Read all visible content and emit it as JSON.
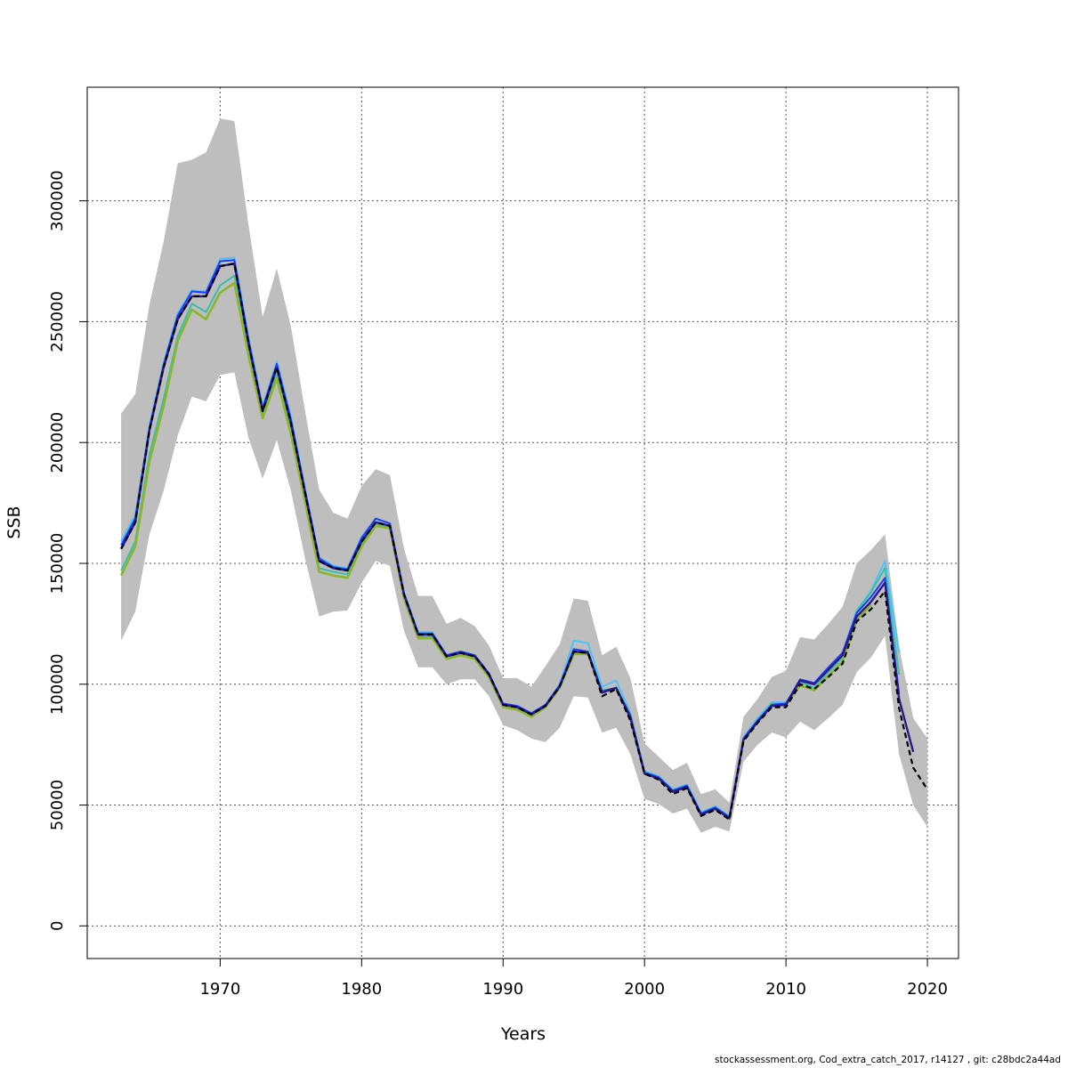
{
  "chart_data": {
    "type": "line",
    "title": "",
    "xlabel": "Years",
    "ylabel": "SSB",
    "xlim": [
      1960.6,
      2022.2
    ],
    "ylim": [
      -13500,
      347000
    ],
    "grid": true,
    "x_ticks": [
      1970,
      1980,
      1990,
      2000,
      2010,
      2020
    ],
    "y_ticks": [
      0,
      50000,
      100000,
      150000,
      200000,
      250000,
      300000
    ],
    "x_tick_labels": [
      "1970",
      "1980",
      "1990",
      "2000",
      "2010",
      "2020"
    ],
    "y_tick_labels": [
      "0",
      "50000",
      "100000",
      "150000",
      "200000",
      "250000",
      "300000"
    ],
    "colors": {
      "band": "#bebebe",
      "grid": "#555555",
      "series": [
        "#000000",
        "#2e1a87",
        "#1e3cff",
        "#3cbfa6",
        "#8db52c",
        "#4fc3f7"
      ]
    },
    "band": {
      "x": [
        1963,
        1964,
        1965,
        1966,
        1967,
        1968,
        1969,
        1970,
        1971,
        1972,
        1973,
        1974,
        1975,
        1976,
        1977,
        1978,
        1979,
        1980,
        1981,
        1982,
        1983,
        1984,
        1985,
        1986,
        1987,
        1988,
        1989,
        1990,
        1991,
        1992,
        1993,
        1994,
        1995,
        1996,
        1997,
        1998,
        1999,
        2000,
        2001,
        2002,
        2003,
        2004,
        2005,
        2006,
        2007,
        2008,
        2009,
        2010,
        2011,
        2012,
        2013,
        2014,
        2015,
        2016,
        2017,
        2018,
        2019,
        2020
      ],
      "lower": [
        118000,
        130000,
        162000,
        180000,
        203000,
        219000,
        217000,
        228000,
        229000,
        202000,
        185000,
        201000,
        180000,
        152000,
        128000,
        130000,
        130500,
        142000,
        151000,
        149000,
        122000,
        107000,
        107000,
        100000,
        102000,
        102000,
        95000,
        83000,
        81000,
        77500,
        76000,
        82000,
        95000,
        94500,
        80000,
        82000,
        71000,
        52500,
        50500,
        46500,
        48500,
        38500,
        41000,
        39000,
        68000,
        75000,
        80000,
        78000,
        84500,
        81000,
        86000,
        91500,
        105000,
        111000,
        120000,
        71000,
        50000,
        41000
      ],
      "upper": [
        212000,
        220000,
        257000,
        283000,
        315500,
        317000,
        320000,
        334000,
        333000,
        290000,
        252000,
        272000,
        248000,
        213000,
        180500,
        171000,
        168500,
        182000,
        189000,
        186500,
        156000,
        136500,
        136500,
        125000,
        127500,
        124000,
        116000,
        102500,
        102500,
        99000,
        107500,
        116500,
        135500,
        134500,
        112000,
        115500,
        102500,
        75500,
        70000,
        64500,
        67500,
        54500,
        56500,
        51000,
        86500,
        94000,
        103000,
        105500,
        119500,
        118500,
        125000,
        132000,
        150000,
        155500,
        162000,
        115500,
        86000,
        77500
      ]
    },
    "series": [
      {
        "x": [
          1963,
          1964,
          1965,
          1966,
          1967,
          1968,
          1969,
          1970,
          1971,
          1972,
          1973,
          1974,
          1975,
          1976,
          1977,
          1978,
          1979,
          1980,
          1981,
          1982,
          1983,
          1984,
          1985,
          1986,
          1987,
          1988,
          1989,
          1990,
          1991,
          1992,
          1993,
          1994,
          1995,
          1996,
          1997,
          1998,
          1999,
          2000,
          2001,
          2002,
          2003,
          2004,
          2005,
          2006,
          2007,
          2008,
          2009,
          2010,
          2011,
          2012,
          2013,
          2014,
          2015,
          2016,
          2017,
          2018,
          2019,
          2020
        ],
        "values": [
          156000,
          167000,
          205000,
          231000,
          251000,
          260500,
          260500,
          273000,
          274000,
          241000,
          213000,
          231000,
          208000,
          179000,
          151000,
          148000,
          147000,
          159000,
          167000,
          165500,
          137000,
          120500,
          120500,
          111500,
          113000,
          111500,
          104000,
          91500,
          90500,
          87500,
          91000,
          99000,
          113500,
          113000,
          95000,
          98000,
          85000,
          63000,
          60500,
          54500,
          57000,
          45500,
          48000,
          44000,
          76500,
          84000,
          90500,
          90500,
          100000,
          98000,
          103000,
          108500,
          126000,
          131000,
          138500,
          90000,
          65500,
          56500
        ],
        "dashed": true,
        "width": 2.2
      },
      {
        "x": [
          1963,
          1964,
          1965,
          1966,
          1967,
          1968,
          1969,
          1970,
          1971,
          1972,
          1973,
          1974,
          1975,
          1976,
          1977,
          1978,
          1979,
          1980,
          1981,
          1982,
          1983,
          1984,
          1985,
          1986,
          1987,
          1988,
          1989,
          1990,
          1991,
          1992,
          1993,
          1994,
          1995,
          1996,
          1997,
          1998,
          1999,
          2000,
          2001,
          2002,
          2003,
          2004,
          2005,
          2006,
          2007,
          2008,
          2009,
          2010,
          2011,
          2012,
          2013,
          2014,
          2015,
          2016,
          2017,
          2018,
          2019
        ],
        "values": [
          156000,
          167000,
          205000,
          231000,
          251000,
          260500,
          260500,
          273000,
          274000,
          241000,
          213000,
          231000,
          208000,
          179000,
          151000,
          148000,
          147000,
          159000,
          167000,
          165500,
          137000,
          120500,
          120500,
          111500,
          113000,
          111500,
          104000,
          91500,
          90500,
          87500,
          91000,
          99000,
          113500,
          113000,
          96500,
          98500,
          86000,
          63000,
          61000,
          55500,
          57500,
          46000,
          48500,
          44500,
          77000,
          84500,
          91000,
          91500,
          101500,
          100000,
          106000,
          112000,
          128000,
          134000,
          142000,
          94000,
          72000
        ],
        "dashed": false,
        "width": 2.4
      },
      {
        "x": [
          1963,
          1964,
          1965,
          1966,
          1967,
          1968,
          1969,
          1970,
          1971,
          1972,
          1973,
          1974,
          1975,
          1976,
          1977,
          1978,
          1979,
          1980,
          1981,
          1982,
          1983,
          1984,
          1985,
          1986,
          1987,
          1988,
          1989,
          1990,
          1991,
          1992,
          1993,
          1994,
          1995,
          1996,
          1997,
          1998,
          1999,
          2000,
          2001,
          2002,
          2003,
          2004,
          2005,
          2006,
          2007,
          2008,
          2009,
          2010,
          2011,
          2012,
          2013,
          2014,
          2015,
          2016,
          2017,
          2018
        ],
        "values": [
          157500,
          168500,
          206000,
          232000,
          252500,
          262500,
          262000,
          275000,
          275500,
          242500,
          214000,
          232500,
          209500,
          180000,
          152000,
          148500,
          147500,
          160500,
          168500,
          166500,
          137500,
          121000,
          121000,
          112000,
          113500,
          112000,
          104500,
          92000,
          91000,
          88000,
          91500,
          99500,
          114500,
          113500,
          97000,
          98500,
          87000,
          63500,
          61500,
          56000,
          58000,
          46500,
          49000,
          45000,
          77500,
          85000,
          91500,
          92000,
          102000,
          100500,
          107000,
          113000,
          129500,
          136000,
          144000,
          96000
        ],
        "dashed": false,
        "width": 2
      },
      {
        "x": [
          1963,
          1964,
          1965,
          1966,
          1967,
          1968,
          1969,
          1970,
          1971,
          1972,
          1973,
          1974,
          1975,
          1976,
          1977,
          1978,
          1979,
          1980,
          1981,
          1982,
          1983,
          1984,
          1985,
          1986,
          1987,
          1988,
          1989,
          1990,
          1991,
          1992,
          1993,
          1994,
          1995,
          1996,
          1997,
          1998,
          1999,
          2000,
          2001,
          2002,
          2003,
          2004,
          2005,
          2006,
          2007,
          2008,
          2009,
          2010,
          2011,
          2012,
          2013,
          2014,
          2015,
          2016,
          2017,
          2018
        ],
        "values": [
          147000,
          159000,
          195000,
          218000,
          244000,
          257500,
          254000,
          265000,
          269000,
          238000,
          211000,
          228000,
          205000,
          177000,
          148000,
          146500,
          145500,
          158000,
          166000,
          165000,
          136000,
          119500,
          119500,
          111000,
          112500,
          111000,
          103500,
          91000,
          90000,
          87000,
          91000,
          99000,
          113000,
          113000,
          97500,
          98500,
          87500,
          63500,
          61500,
          56000,
          58000,
          46500,
          49000,
          45000,
          77500,
          85000,
          92000,
          92000,
          101000,
          98500,
          105000,
          111000,
          130000,
          138000,
          148000,
          104000
        ],
        "dashed": false,
        "width": 2
      },
      {
        "x": [
          1963,
          1964,
          1965,
          1966,
          1967,
          1968,
          1969,
          1970,
          1971,
          1972,
          1973,
          1974,
          1975,
          1976,
          1977,
          1978,
          1979,
          1980,
          1981,
          1982,
          1983,
          1984,
          1985,
          1986,
          1987,
          1988,
          1989,
          1990,
          1991,
          1992,
          1993,
          1994,
          1995,
          1996,
          1997,
          1998,
          1999,
          2000,
          2001,
          2002,
          2003,
          2004,
          2005,
          2006,
          2007,
          2008,
          2009,
          2010,
          2011,
          2012,
          2013,
          2014,
          2015,
          2016
        ],
        "values": [
          145000,
          157000,
          192000,
          215000,
          242000,
          255000,
          251000,
          262000,
          266000,
          236000,
          210000,
          226500,
          203500,
          175500,
          146500,
          145000,
          144000,
          157000,
          165500,
          164500,
          135500,
          119000,
          119000,
          110500,
          112000,
          110500,
          103000,
          90500,
          89500,
          86500,
          90500,
          98500,
          112500,
          112500,
          97000,
          98000,
          87000,
          63000,
          61000,
          55500,
          57500,
          46000,
          48500,
          44500,
          77000,
          84500,
          91500,
          91500,
          99500,
          97500,
          103500,
          109500,
          126500,
          133000
        ],
        "dashed": false,
        "width": 2.6
      },
      {
        "x": [
          1963,
          1964,
          1965,
          1966,
          1967,
          1968,
          1969,
          1970,
          1971,
          1972,
          1973,
          1974,
          1975,
          1976,
          1977,
          1978,
          1979,
          1980,
          1981,
          1982,
          1983,
          1984,
          1985,
          1986,
          1987,
          1988,
          1989,
          1990,
          1991,
          1992,
          1993,
          1994,
          1995,
          1996,
          1997,
          1998,
          1999,
          2000,
          2001,
          2002,
          2003,
          2004,
          2005,
          2006,
          2007,
          2008,
          2009,
          2010,
          2011,
          2012,
          2013,
          2014,
          2015,
          2016,
          2017,
          2018
        ],
        "values": [
          159000,
          170000,
          207000,
          233000,
          253500,
          263000,
          262500,
          276000,
          276500,
          243500,
          215000,
          233500,
          210500,
          181000,
          152500,
          149000,
          148000,
          161000,
          168500,
          166500,
          138000,
          121500,
          121500,
          112000,
          113500,
          112000,
          104500,
          92000,
          91000,
          88000,
          91500,
          100000,
          118000,
          117000,
          99000,
          101500,
          88000,
          64000,
          62000,
          56500,
          58500,
          47000,
          49500,
          45500,
          78000,
          86000,
          92500,
          92500,
          101000,
          100000,
          106500,
          113000,
          130500,
          138500,
          151000,
          113000
        ],
        "dashed": false,
        "width": 2
      }
    ]
  },
  "footer": "stockassessment.org, Cod_extra_catch_2017, r14127 , git: c28bdc2a44ad"
}
